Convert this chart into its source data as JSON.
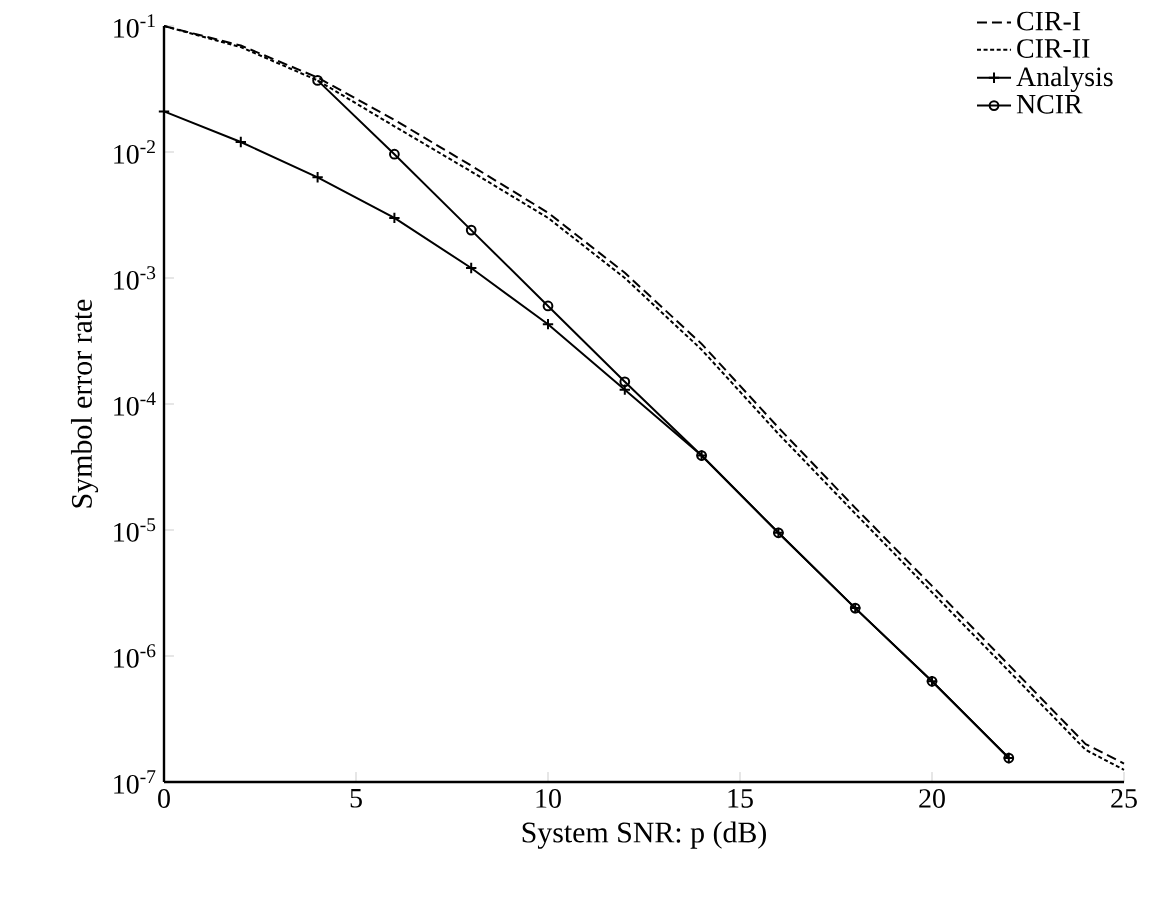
{
  "chart_data": {
    "type": "line",
    "xlabel": "System SNR: p (dB)",
    "ylabel": "Symbol error rate",
    "log": "y",
    "xlim": [
      0,
      25
    ],
    "xticks": [
      0,
      5,
      10,
      15,
      20,
      25
    ],
    "ylim": [
      1e-07,
      0.1
    ],
    "yticks": [
      {
        "value": 1e-07,
        "label": "10$^{-7}$"
      },
      {
        "value": 1e-06,
        "label": "10$^{-6}$"
      },
      {
        "value": 1e-05,
        "label": "10$^{-5}$"
      },
      {
        "value": 0.0001,
        "label": "10$^{-4}$"
      },
      {
        "value": 0.001,
        "label": "10$^{-3}$"
      },
      {
        "value": 0.01,
        "label": "10$^{-2}$"
      },
      {
        "value": 0.1,
        "label": "10$^{-1}$"
      }
    ],
    "grid": false,
    "legend": "top right",
    "series": [
      {
        "name": "CIR-I",
        "color": "#000000",
        "line_style": "dashed",
        "marker": "none",
        "x": [
          0,
          2,
          4,
          6,
          8,
          10,
          12,
          14,
          16,
          18,
          20,
          22,
          24,
          25
        ],
        "values": [
          0.1,
          0.07,
          0.039,
          0.018,
          0.0078,
          0.0033,
          0.0011,
          0.0003,
          6.5e-05,
          1.5e-05,
          3.6e-06,
          8.5e-07,
          2e-07,
          1.4e-07
        ]
      },
      {
        "name": "CIR-II",
        "color": "#000000",
        "line_style": "dotted",
        "marker": "none",
        "x": [
          0,
          2,
          4,
          6,
          8,
          10,
          12,
          14,
          16,
          18,
          20,
          22,
          24,
          25
        ],
        "values": [
          0.1,
          0.068,
          0.037,
          0.016,
          0.007,
          0.003,
          0.001,
          0.00027,
          5.8e-05,
          1.35e-05,
          3.2e-06,
          7.6e-07,
          1.8e-07,
          1.25e-07
        ]
      },
      {
        "name": "Analysis",
        "color": "#000000",
        "line_style": "solid",
        "marker": "cross",
        "x": [
          0,
          2,
          4,
          6,
          8,
          10,
          12,
          14,
          16,
          18,
          20,
          22
        ],
        "values": [
          0.021,
          0.012,
          0.0063,
          0.003,
          0.0012,
          0.00043,
          0.00013,
          3.9e-05,
          9.5e-06,
          2.4e-06,
          6.3e-07,
          1.55e-07
        ]
      },
      {
        "name": "NCIR",
        "color": "#000000",
        "line_style": "solid",
        "marker": "circle",
        "x": [
          4,
          6,
          8,
          10,
          12,
          14,
          16,
          18,
          20,
          22
        ],
        "values": [
          0.037,
          0.0096,
          0.0024,
          0.0006,
          0.00015,
          3.9e-05,
          9.5e-06,
          2.4e-06,
          6.3e-07,
          1.55e-07
        ]
      }
    ]
  }
}
